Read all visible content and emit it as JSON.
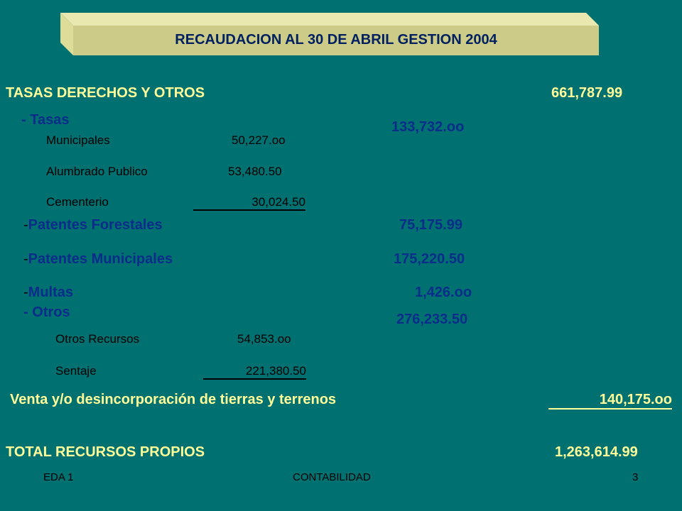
{
  "title": "RECAUDACION AL 30 DE ABRIL GESTION 2004",
  "tasas_derechos": {
    "label": "TASAS DERECHOS Y OTROS",
    "amount": "661,787.99"
  },
  "tasas": {
    "label": "- Tasas",
    "amount": "133,732.oo",
    "items": [
      {
        "label": "Municipales",
        "amount": "50,227.oo"
      },
      {
        "label": "Alumbrado Publico",
        "amount": "53,480.50"
      },
      {
        "label": "Cementerio",
        "amount": "30,024.50"
      }
    ]
  },
  "patentes_forestales": {
    "dash": "-",
    "label": "Patentes Forestales",
    "amount": "75,175.99"
  },
  "patentes_municipales": {
    "dash": "-",
    "label": "Patentes Municipales",
    "amount": "175,220.50"
  },
  "multas": {
    "dash": "-",
    "label": "Multas",
    "amount": "1,426.oo"
  },
  "otros": {
    "label": "- Otros",
    "amount": "276,233.50",
    "items": [
      {
        "label": "Otros Recursos",
        "amount": "54,853.oo"
      },
      {
        "label": "Sentaje",
        "amount": "221,380.50"
      }
    ]
  },
  "venta": {
    "label": "Venta y/o desincorporación de tierras y terrenos",
    "amount": "140,175.oo"
  },
  "total": {
    "label": "TOTAL RECURSOS PROPIOS",
    "amount": "1,263,614.99"
  },
  "footer": {
    "left": "EDA 1",
    "center": "CONTABILIDAD",
    "page": "3"
  }
}
